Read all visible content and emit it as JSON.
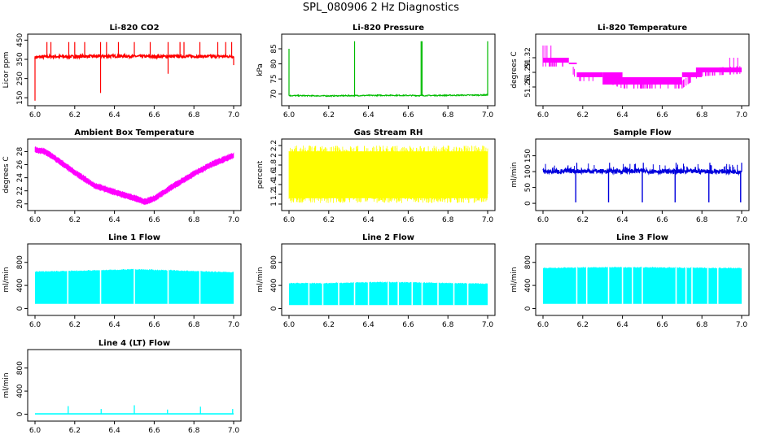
{
  "title": "SPL_080906  2 Hz Diagnostics",
  "chart_data": [
    {
      "type": "line",
      "title": "Li-820 CO2",
      "ylabel": "Licor ppm",
      "color": "#ff0000",
      "xlim": [
        6.0,
        7.0
      ],
      "ylim": [
        130,
        460
      ],
      "xticks": [
        "6.0",
        "6.2",
        "6.4",
        "6.6",
        "6.8",
        "7.0"
      ],
      "yticks": [
        150,
        250,
        350,
        450
      ],
      "x": [
        6.0,
        6.02,
        6.08,
        6.17,
        6.25,
        6.33,
        6.42,
        6.5,
        6.58,
        6.67,
        6.75,
        6.83,
        6.92,
        7.0
      ],
      "series": [
        {
          "values": [
            360,
            362,
            365,
            364,
            365,
            366,
            367,
            366,
            365,
            365,
            366,
            365,
            366,
            365
          ]
        }
      ]
    },
    {
      "type": "line",
      "title": "Li-820 Pressure",
      "ylabel": "kPa",
      "color": "#00bb00",
      "xlim": [
        6.0,
        7.0
      ],
      "ylim": [
        67.5,
        88.5
      ],
      "xticks": [
        "6.0",
        "6.2",
        "6.4",
        "6.6",
        "6.8",
        "7.0"
      ],
      "yticks": [
        70,
        75,
        80,
        85
      ],
      "x": [
        6.0,
        6.2,
        6.33,
        6.5,
        6.67,
        6.83,
        7.0
      ],
      "series": [
        {
          "values": [
            69.5,
            69.4,
            69.5,
            69.6,
            69.5,
            69.6,
            69.7
          ]
        }
      ]
    },
    {
      "type": "line",
      "title": "Li-820 Temperature",
      "ylabel": "degrees C",
      "color": "#ff00ff",
      "xlim": [
        6.0,
        7.0
      ],
      "ylim": [
        51.23,
        51.36
      ],
      "xticks": [
        "6.0",
        "6.2",
        "6.4",
        "6.6",
        "6.8",
        "7.0"
      ],
      "yticks": [
        51.26,
        51.29,
        51.32
      ],
      "x": [
        6.0,
        6.13,
        6.17,
        6.3,
        6.4,
        6.7,
        6.77,
        6.8,
        7.0
      ],
      "series": [
        {
          "values": [
            51.31,
            51.31,
            51.28,
            51.28,
            51.265,
            51.265,
            51.285,
            51.29,
            51.295
          ]
        }
      ]
    },
    {
      "type": "line",
      "title": "Ambient Box Temperature",
      "ylabel": "degrees C",
      "color": "#ff00ff",
      "xlim": [
        6.0,
        7.0
      ],
      "ylim": [
        19.6,
        29.3
      ],
      "xticks": [
        "6.0",
        "6.2",
        "6.4",
        "6.6",
        "6.8",
        "7.0"
      ],
      "yticks": [
        20,
        22,
        24,
        26,
        28
      ],
      "x": [
        6.0,
        6.05,
        6.1,
        6.2,
        6.3,
        6.4,
        6.5,
        6.55,
        6.6,
        6.7,
        6.8,
        6.9,
        7.0
      ],
      "series": [
        {
          "values": [
            28.3,
            28.0,
            27.0,
            24.8,
            22.8,
            21.8,
            20.9,
            20.3,
            20.8,
            22.8,
            24.6,
            26.2,
            27.4
          ]
        }
      ]
    },
    {
      "type": "line",
      "title": "Gas Stream RH",
      "ylabel": "percent",
      "color": "#ffff00",
      "xlim": [
        6.0,
        7.0
      ],
      "ylim": [
        0.95,
        2.25
      ],
      "xticks": [
        "6.0",
        "6.2",
        "6.4",
        "6.6",
        "6.8",
        "7.0"
      ],
      "yticks": [
        1.0,
        1.2,
        1.4,
        1.6,
        1.8,
        2.0,
        2.2
      ],
      "x": [
        6.0,
        7.0
      ],
      "series": [
        {
          "values": [
            1.1,
            2.1
          ]
        }
      ]
    },
    {
      "type": "line",
      "title": "Sample Flow",
      "ylabel": "ml/min",
      "color": "#0000dd",
      "xlim": [
        6.0,
        7.0
      ],
      "ylim": [
        -10,
        190
      ],
      "xticks": [
        "6.0",
        "6.2",
        "6.4",
        "6.6",
        "6.8",
        "7.0"
      ],
      "yticks": [
        0,
        50,
        100,
        150
      ],
      "x": [
        6.0,
        6.17,
        6.33,
        6.5,
        6.67,
        6.83,
        7.0
      ],
      "series": [
        {
          "values": [
            100,
            102,
            101,
            102,
            100,
            101,
            100
          ]
        }
      ]
    },
    {
      "type": "line",
      "title": "Line 1 Flow",
      "ylabel": "ml/min",
      "color": "#00ffff",
      "xlim": [
        6.0,
        7.0
      ],
      "ylim": [
        -50,
        1050
      ],
      "xticks": [
        "6.0",
        "6.2",
        "6.4",
        "6.6",
        "6.8",
        "7.0"
      ],
      "yticks": [
        0,
        400,
        800
      ],
      "x": [
        6.0,
        6.17,
        6.33,
        6.5,
        6.67,
        6.83,
        7.0
      ],
      "series": [
        {
          "name": "max",
          "values": [
            640,
            650,
            665,
            680,
            665,
            645,
            630
          ]
        },
        {
          "name": "min",
          "values": [
            80,
            80,
            80,
            80,
            80,
            80,
            80
          ]
        }
      ]
    },
    {
      "type": "line",
      "title": "Line 2 Flow",
      "ylabel": "ml/min",
      "color": "#00ffff",
      "xlim": [
        6.0,
        7.0
      ],
      "ylim": [
        -50,
        1050
      ],
      "xticks": [
        "6.0",
        "6.2",
        "6.4",
        "6.6",
        "6.8",
        "7.0"
      ],
      "yticks": [
        0,
        400,
        800
      ],
      "x": [
        6.0,
        6.17,
        6.33,
        6.5,
        6.67,
        6.83,
        7.0
      ],
      "series": [
        {
          "name": "max",
          "values": [
            440,
            440,
            450,
            460,
            450,
            440,
            430
          ]
        },
        {
          "name": "min",
          "values": [
            60,
            60,
            60,
            60,
            60,
            60,
            60
          ]
        }
      ]
    },
    {
      "type": "line",
      "title": "Line 3 Flow",
      "ylabel": "ml/min",
      "color": "#00ffff",
      "xlim": [
        6.0,
        7.0
      ],
      "ylim": [
        -50,
        1050
      ],
      "xticks": [
        "6.0",
        "6.2",
        "6.4",
        "6.6",
        "6.8",
        "7.0"
      ],
      "yticks": [
        0,
        400,
        800
      ],
      "x": [
        6.0,
        6.17,
        6.33,
        6.5,
        6.67,
        6.83,
        7.0
      ],
      "series": [
        {
          "name": "max",
          "values": [
            700,
            710,
            715,
            715,
            710,
            705,
            700
          ]
        },
        {
          "name": "min",
          "values": [
            80,
            80,
            80,
            80,
            80,
            80,
            80
          ]
        }
      ]
    },
    {
      "type": "line",
      "title": "Line 4 (LT) Flow",
      "ylabel": "ml/min",
      "color": "#00ffff",
      "xlim": [
        6.0,
        7.0
      ],
      "ylim": [
        -50,
        1050
      ],
      "xticks": [
        "6.0",
        "6.2",
        "6.4",
        "6.6",
        "6.8",
        "7.0"
      ],
      "yticks": [
        0,
        400,
        800
      ],
      "x": [
        6.0,
        6.17,
        6.33,
        6.5,
        6.67,
        6.83,
        7.0
      ],
      "series": [
        {
          "values": [
            5,
            6,
            5,
            6,
            5,
            6,
            5
          ]
        }
      ]
    }
  ]
}
